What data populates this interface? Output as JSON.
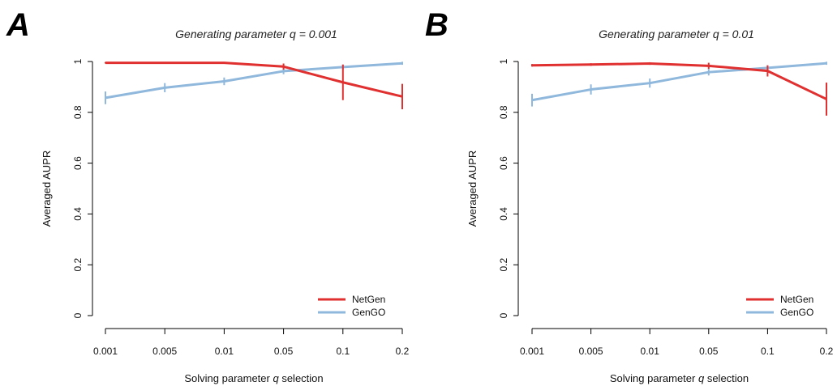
{
  "chart_data": [
    {
      "type": "line",
      "panel": "A",
      "title": "Generating parameter q = 0.001",
      "xlabel": "Solving parameter q selection",
      "ylabel": "Averaged  AUPR",
      "categories": [
        "0.001",
        "0.005",
        "0.01",
        "0.05",
        "0.1",
        "0.2"
      ],
      "ylim": [
        0,
        1
      ],
      "yticks": [
        "0",
        "0.2",
        "0.4",
        "0.6",
        "0.8",
        "1"
      ],
      "grid": false,
      "legend_position": "bottom-right",
      "series": [
        {
          "name": "NetGen",
          "color": "#e03030",
          "values": [
            0.995,
            0.995,
            0.995,
            0.98,
            0.918,
            0.862
          ],
          "errors": [
            0.003,
            0.003,
            0.003,
            0.012,
            0.07,
            0.05
          ]
        },
        {
          "name": "GenGO",
          "color": "#8fb8dc",
          "values": [
            0.857,
            0.897,
            0.922,
            0.962,
            0.978,
            0.993
          ],
          "errors": [
            0.025,
            0.018,
            0.015,
            0.012,
            0.01,
            0.006
          ]
        }
      ]
    },
    {
      "type": "line",
      "panel": "B",
      "title": "Generating parameter q = 0.01",
      "xlabel": "Solving parameter q selection",
      "ylabel": "Averaged  AUPR",
      "categories": [
        "0.001",
        "0.005",
        "0.01",
        "0.05",
        "0.1",
        "0.2"
      ],
      "ylim": [
        0,
        1
      ],
      "yticks": [
        "0",
        "0.2",
        "0.4",
        "0.6",
        "0.8",
        "1"
      ],
      "grid": false,
      "legend_position": "bottom-right",
      "series": [
        {
          "name": "NetGen",
          "color": "#e03030",
          "values": [
            0.985,
            0.988,
            0.992,
            0.983,
            0.963,
            0.852
          ],
          "errors": [
            0.005,
            0.005,
            0.005,
            0.012,
            0.022,
            0.065
          ]
        },
        {
          "name": "GenGO",
          "color": "#8fb8dc",
          "values": [
            0.848,
            0.89,
            0.915,
            0.958,
            0.975,
            0.993
          ],
          "errors": [
            0.025,
            0.02,
            0.018,
            0.013,
            0.01,
            0.006
          ]
        }
      ]
    }
  ]
}
